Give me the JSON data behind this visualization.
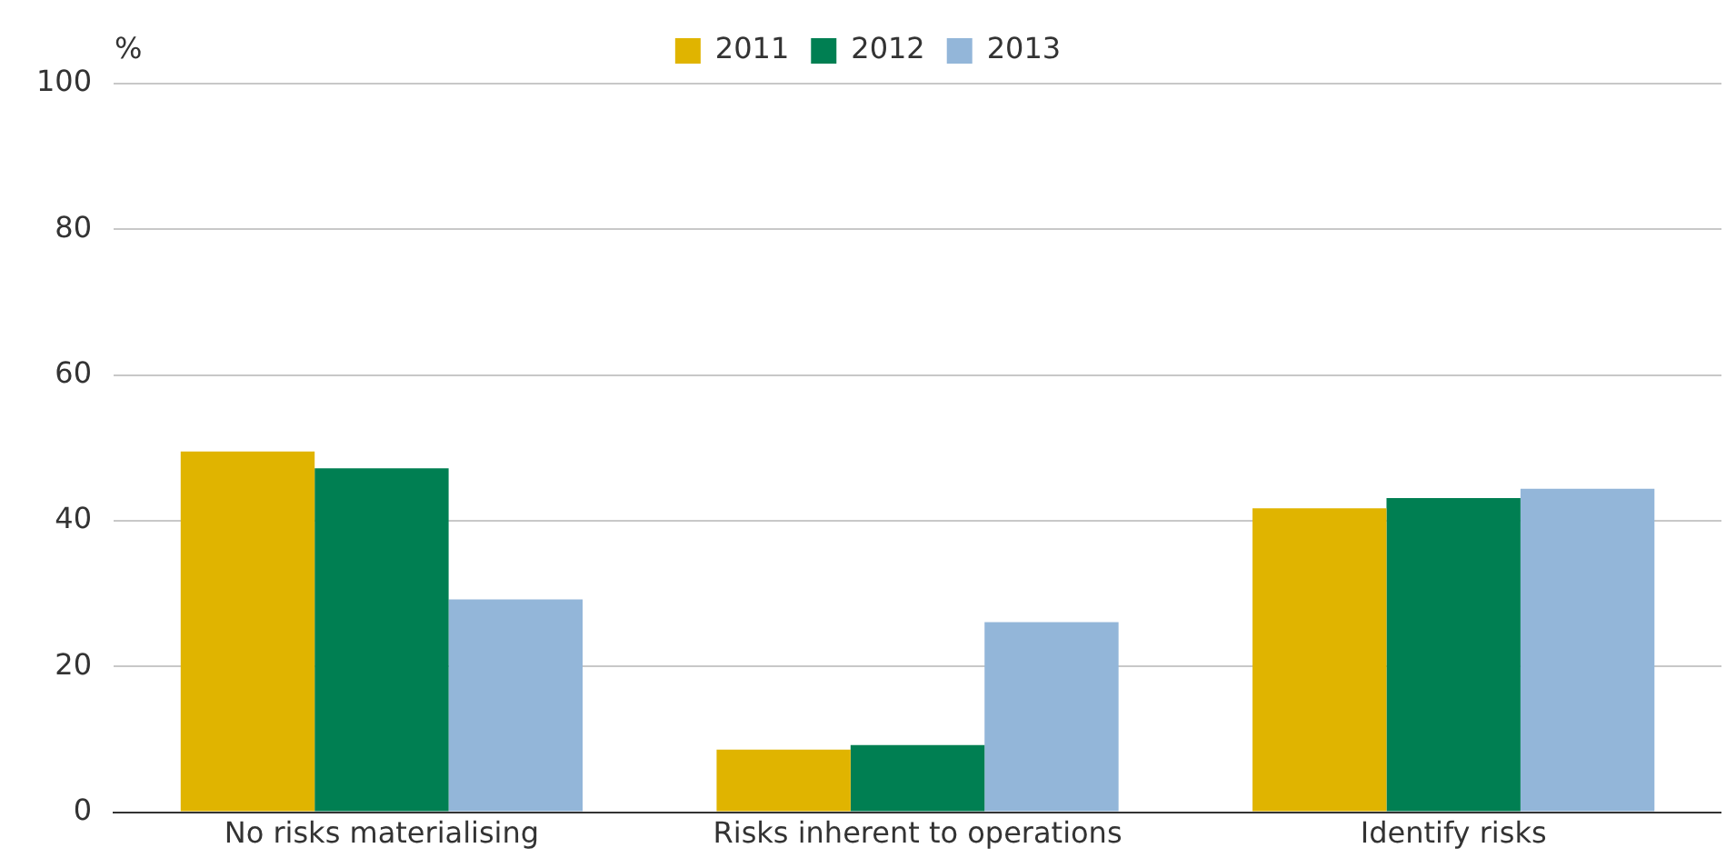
{
  "chart_data": {
    "type": "bar",
    "ylabel": "%",
    "categories": [
      "No risks materialising",
      "Risks inherent to operations",
      "Identify risks"
    ],
    "series": [
      {
        "name": "2011",
        "color": "#e0b400",
        "values": [
          49.5,
          8.6,
          41.7
        ]
      },
      {
        "name": "2012",
        "color": "#007f52",
        "values": [
          47.2,
          9.2,
          43.1
        ]
      },
      {
        "name": "2013",
        "color": "#93b6d9",
        "values": [
          29.2,
          26.1,
          44.4
        ]
      }
    ],
    "ylim": [
      0,
      100
    ],
    "yticks": [
      0,
      20,
      40,
      60,
      80,
      100
    ],
    "grid": "y",
    "legend": "top"
  }
}
